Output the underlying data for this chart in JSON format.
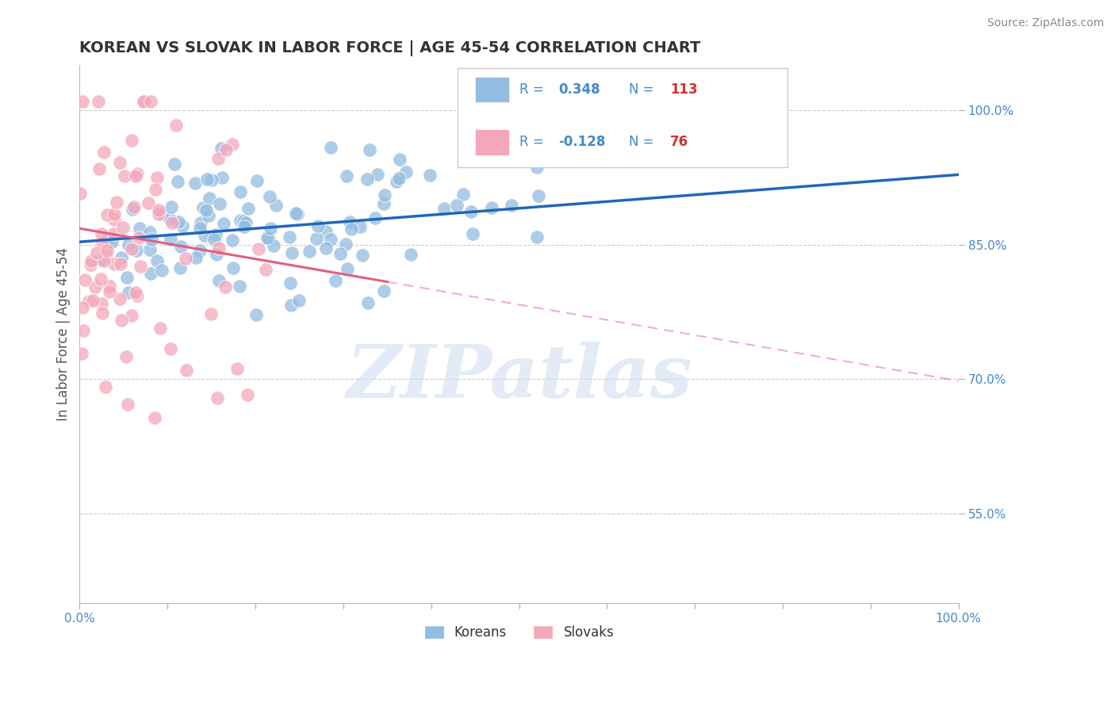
{
  "title": "KOREAN VS SLOVAK IN LABOR FORCE | AGE 45-54 CORRELATION CHART",
  "source_text": "Source: ZipAtlas.com",
  "ylabel": "In Labor Force | Age 45-54",
  "xlim": [
    0.0,
    1.0
  ],
  "ylim": [
    0.45,
    1.05
  ],
  "yticks": [
    0.55,
    0.7,
    0.85,
    1.0
  ],
  "ytick_labels": [
    "55.0%",
    "70.0%",
    "85.0%",
    "100.0%"
  ],
  "xtick_labels": [
    "0.0%",
    "100.0%"
  ],
  "korean_R": 0.348,
  "korean_N": 113,
  "slovak_R": -0.128,
  "slovak_N": 76,
  "korean_color": "#92bce0",
  "slovak_color": "#f4a7b9",
  "korean_line_color": "#2266bb",
  "slovak_line_color": "#e06080",
  "watermark": "ZIPatlas",
  "background_color": "#ffffff",
  "grid_color": "#cccccc",
  "title_color": "#333333",
  "axis_label_color": "#4488cc",
  "legend_R_color": "#4488cc",
  "legend_N_color": "#cc3333"
}
